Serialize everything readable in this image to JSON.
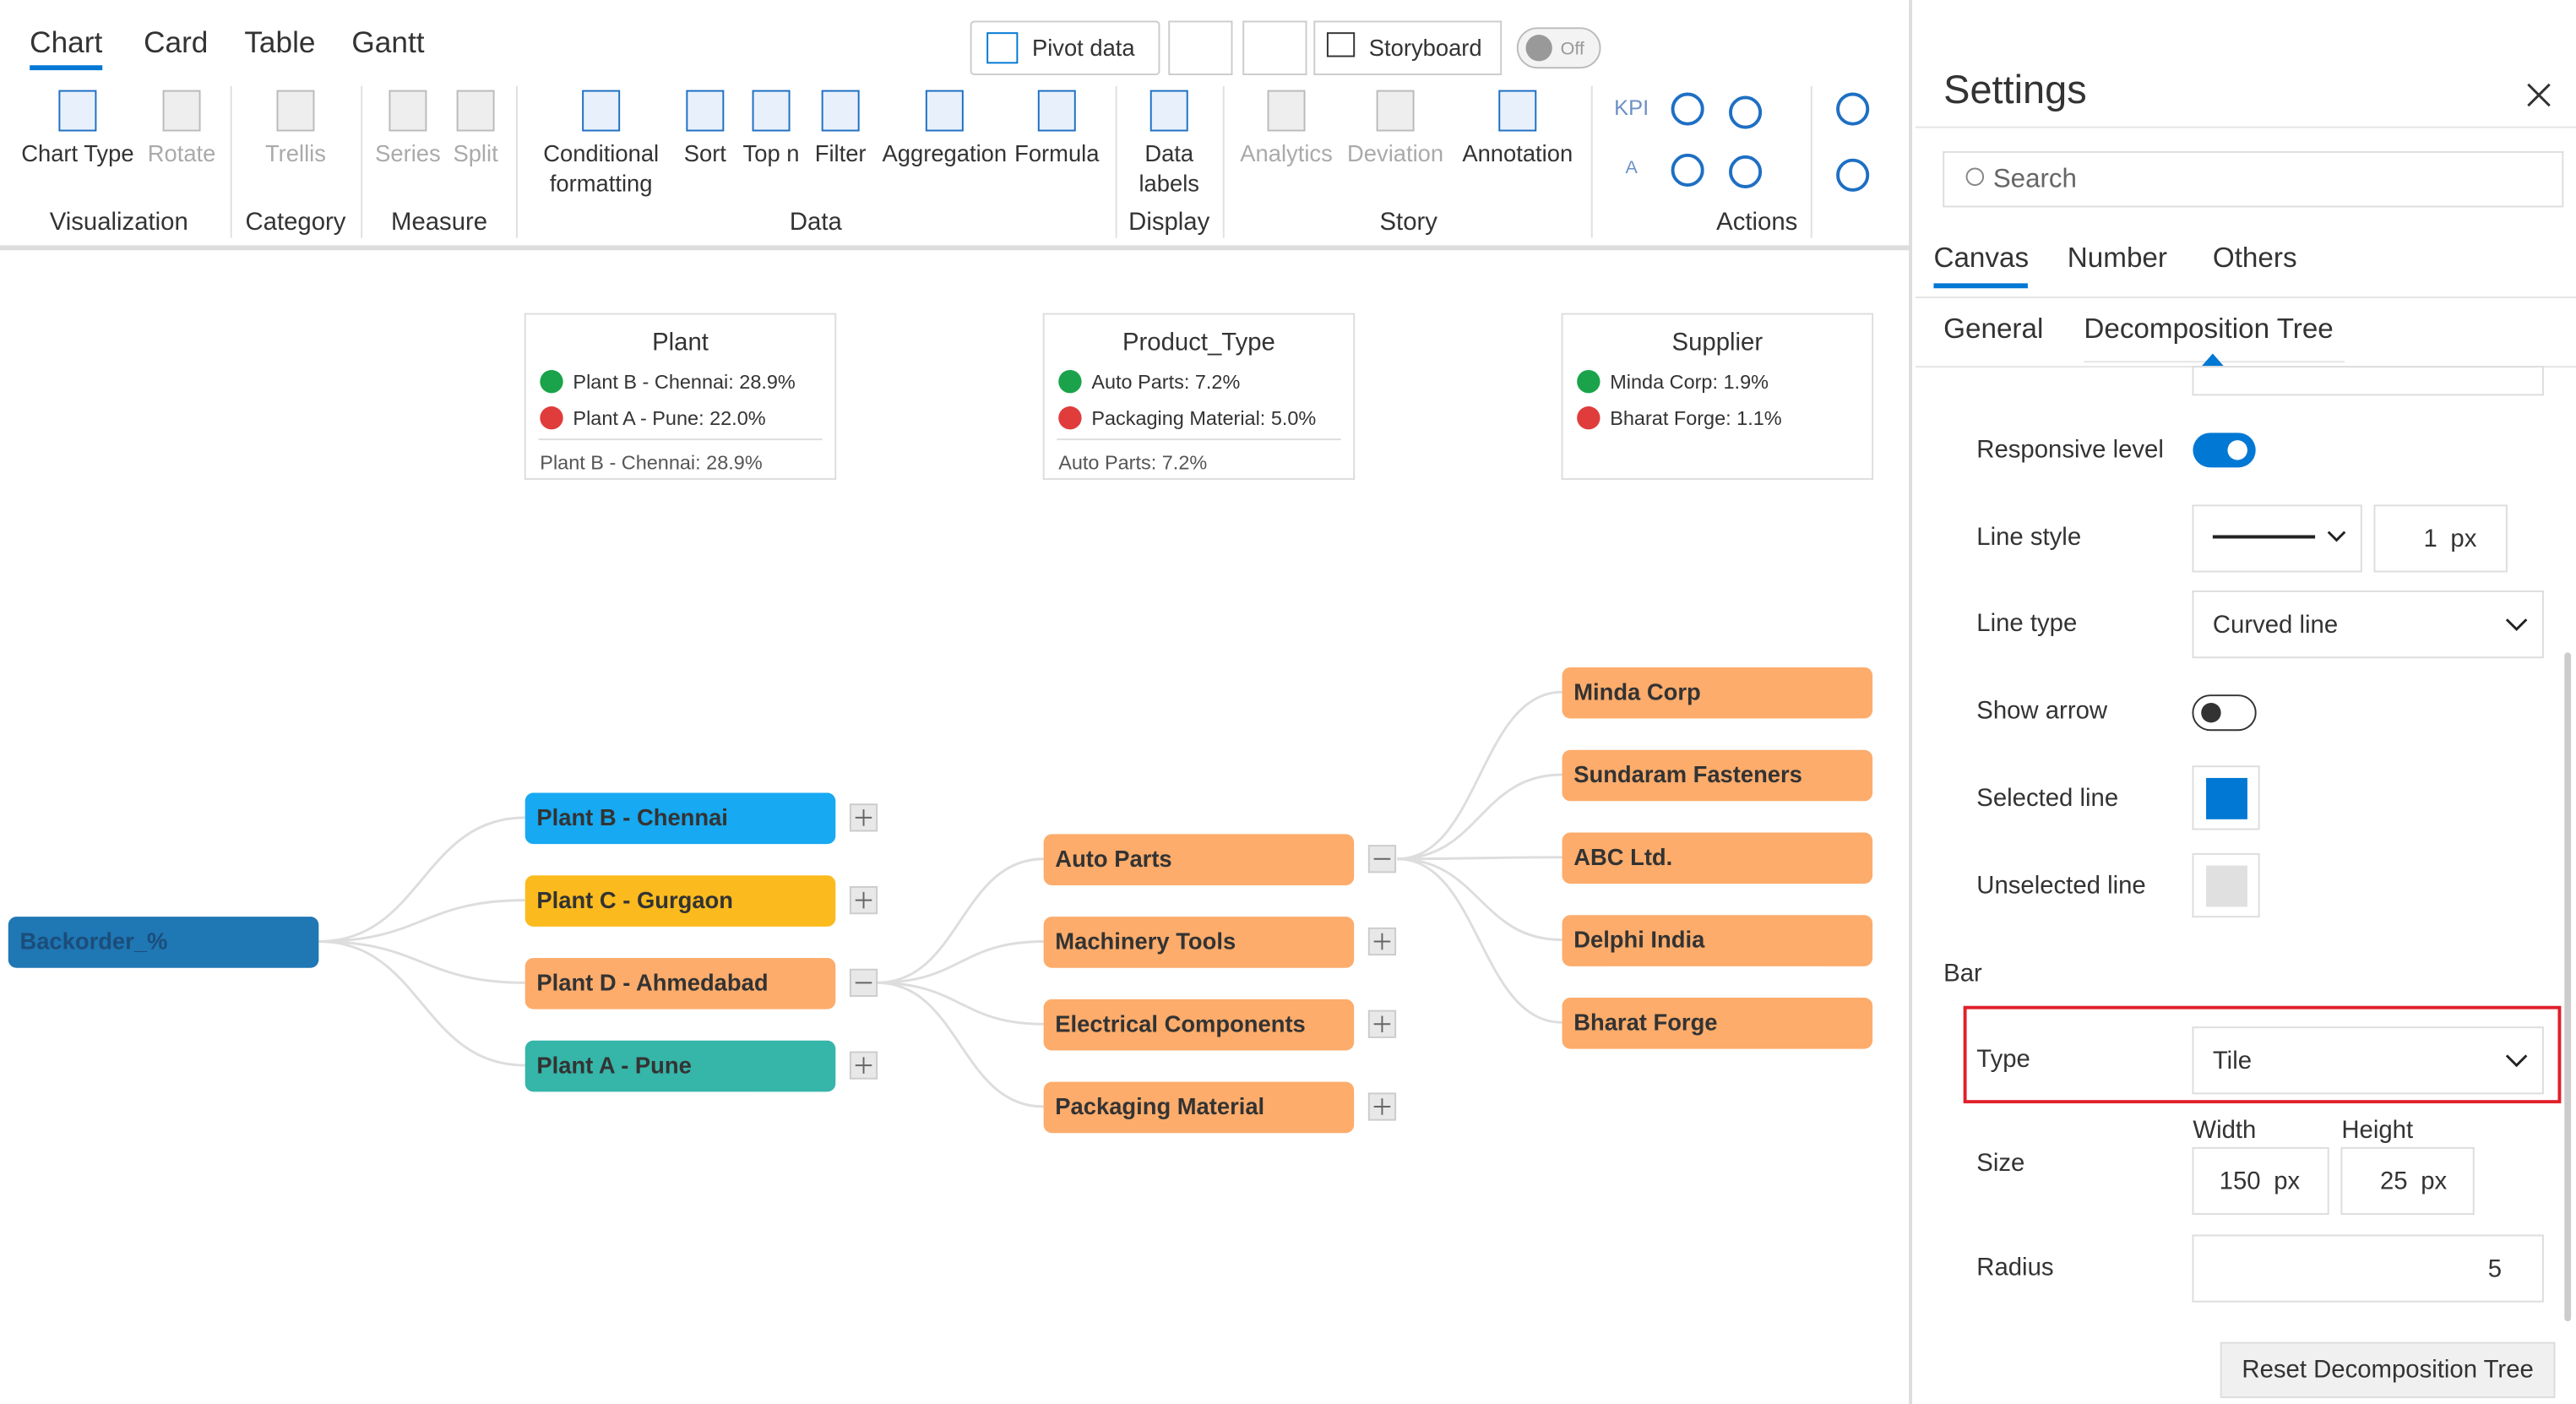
{
  "ribbon": {
    "tabs": [
      "Chart",
      "Card",
      "Table",
      "Gantt"
    ],
    "toolbar": {
      "pivot": "Pivot data",
      "storyboard": "Storyboard",
      "toggle": "Off"
    },
    "groups": [
      {
        "name": "Visualization",
        "buttons": [
          [
            "Chart Type"
          ],
          [
            "Rotate"
          ]
        ]
      },
      {
        "name": "Category",
        "buttons": [
          [
            "Trellis"
          ]
        ]
      },
      {
        "name": "Measure",
        "buttons": [
          [
            "Series"
          ],
          [
            "Split"
          ]
        ]
      },
      {
        "name": "Data",
        "buttons": [
          [
            "Conditional",
            "formatting"
          ],
          [
            "Sort"
          ],
          [
            "Top n"
          ],
          [
            "Filter"
          ],
          [
            "Aggregation"
          ],
          [
            "Formula"
          ]
        ]
      },
      {
        "name": "Display",
        "buttons": [
          [
            "Data",
            "labels"
          ]
        ]
      },
      {
        "name": "Story",
        "buttons": [
          [
            "Analytics"
          ],
          [
            "Deviation"
          ],
          [
            "Annotation"
          ]
        ]
      },
      {
        "name": "Actions",
        "buttons": [
          [
            "KPI"
          ],
          [
            "A"
          ]
        ]
      }
    ]
  },
  "cards": [
    {
      "title": "Plant",
      "up": "Plant B - Chennai: 28.9%",
      "down": "Plant A - Pune: 22.0%",
      "footer": "Plant B - Chennai: 28.9%"
    },
    {
      "title": "Product_Type",
      "up": "Auto Parts: 7.2%",
      "down": "Packaging Material: 5.0%",
      "footer": "Auto Parts: 7.2%"
    },
    {
      "title": "Supplier",
      "up": "Minda Corp: 1.9%",
      "down": "Bharat Forge: 1.1%"
    }
  ],
  "tree": {
    "root": {
      "label": "Backorder_%",
      "color": "#1f77b4"
    },
    "level1": [
      {
        "label": "Plant B - Chennai",
        "color": "#17a9f1"
      },
      {
        "label": "Plant C - Gurgaon",
        "color": "#fbbb1e"
      },
      {
        "label": "Plant D - Ahmedabad",
        "color": "#fdac6b"
      },
      {
        "label": "Plant A - Pune",
        "color": "#36b5a9"
      }
    ],
    "level2": [
      {
        "label": "Auto Parts",
        "color": "#fdac6b"
      },
      {
        "label": "Machinery Tools",
        "color": "#fdac6b"
      },
      {
        "label": "Electrical Components",
        "color": "#fdac6b"
      },
      {
        "label": "Packaging Material",
        "color": "#fdac6b"
      }
    ],
    "level3": [
      {
        "label": "Minda Corp",
        "color": "#fdac6b"
      },
      {
        "label": "Sundaram Fasteners",
        "color": "#fdac6b"
      },
      {
        "label": "ABC Ltd.",
        "color": "#fdac6b"
      },
      {
        "label": "Delphi India",
        "color": "#fdac6b"
      },
      {
        "label": "Bharat Forge",
        "color": "#fdac6b"
      }
    ]
  },
  "settings": {
    "title": "Settings",
    "search": "Search",
    "tabs": [
      "Canvas",
      "Number",
      "Others"
    ],
    "subtabs": [
      "General",
      "Decomposition Tree"
    ],
    "responsive": "Responsive level",
    "lineStyle": {
      "label": "Line style",
      "value": 1,
      "unit": "px"
    },
    "lineType": {
      "label": "Line type",
      "value": "Curved line"
    },
    "showArrow": "Show arrow",
    "selectedLine": {
      "label": "Selected line",
      "color": "#0078d4"
    },
    "unselectedLine": {
      "label": "Unselected line",
      "color": "#e0e0e0"
    },
    "bar": "Bar",
    "type": {
      "label": "Type",
      "value": "Tile"
    },
    "size": {
      "label": "Size",
      "width": {
        "label": "Width",
        "value": 150,
        "unit": "px"
      },
      "height": {
        "label": "Height",
        "value": 25,
        "unit": "px"
      }
    },
    "radius": {
      "label": "Radius",
      "value": 5
    },
    "reset": "Reset Decomposition Tree"
  }
}
